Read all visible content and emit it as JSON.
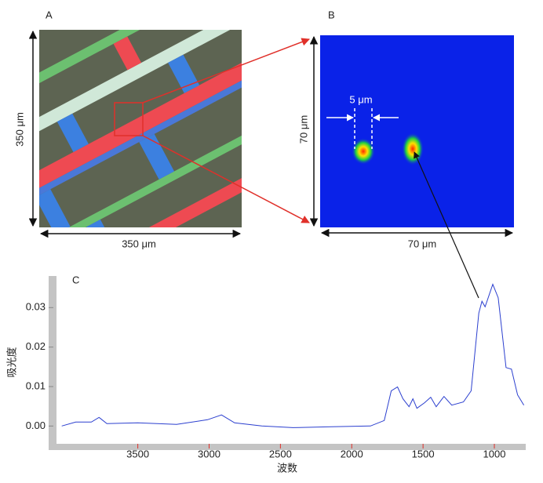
{
  "panels": {
    "a": {
      "label": "A",
      "width_label": "350 μm",
      "height_label": "350 μm"
    },
    "b": {
      "label": "B",
      "width_label": "70 μm",
      "height_label": "70 μm",
      "spot_label": "5 μm"
    }
  },
  "chart_data": {
    "type": "line",
    "label": "C",
    "x_label": "波数",
    "y_label": "吸光度",
    "xlim": [
      4070,
      780
    ],
    "ylim": [
      -0.0045,
      0.038
    ],
    "xticks": [
      3500,
      3000,
      2500,
      2000,
      1500,
      1000
    ],
    "yticks": [
      {
        "value": 0,
        "label": "0.00"
      },
      {
        "value": 0.01,
        "label": "0.01"
      },
      {
        "value": 0.02,
        "label": "0.02"
      },
      {
        "value": 0.03,
        "label": "0.03"
      }
    ],
    "x": [
      4033,
      3935,
      3826,
      3772,
      3717,
      3500,
      3228,
      3011,
      2913,
      2821,
      2630,
      2413,
      2141,
      1869,
      1772,
      1723,
      1679,
      1641,
      1598,
      1571,
      1543,
      1489,
      1446,
      1408,
      1353,
      1299,
      1217,
      1163,
      1109,
      1087,
      1065,
      1011,
      973,
      918,
      880,
      837,
      793
    ],
    "series": [
      {
        "color": "#2b3fcf",
        "values": [
          0.0,
          0.001,
          0.001,
          0.0022,
          0.0006,
          0.0008,
          0.0004,
          0.0016,
          0.0028,
          0.0008,
          0.0,
          -0.0004,
          -0.0002,
          0.0,
          0.0014,
          0.0089,
          0.0099,
          0.0069,
          0.0049,
          0.0069,
          0.0045,
          0.0059,
          0.0073,
          0.0049,
          0.0075,
          0.0053,
          0.0061,
          0.0089,
          0.0286,
          0.0316,
          0.0302,
          0.0359,
          0.0325,
          0.0148,
          0.0144,
          0.0079,
          0.0053
        ]
      }
    ]
  }
}
